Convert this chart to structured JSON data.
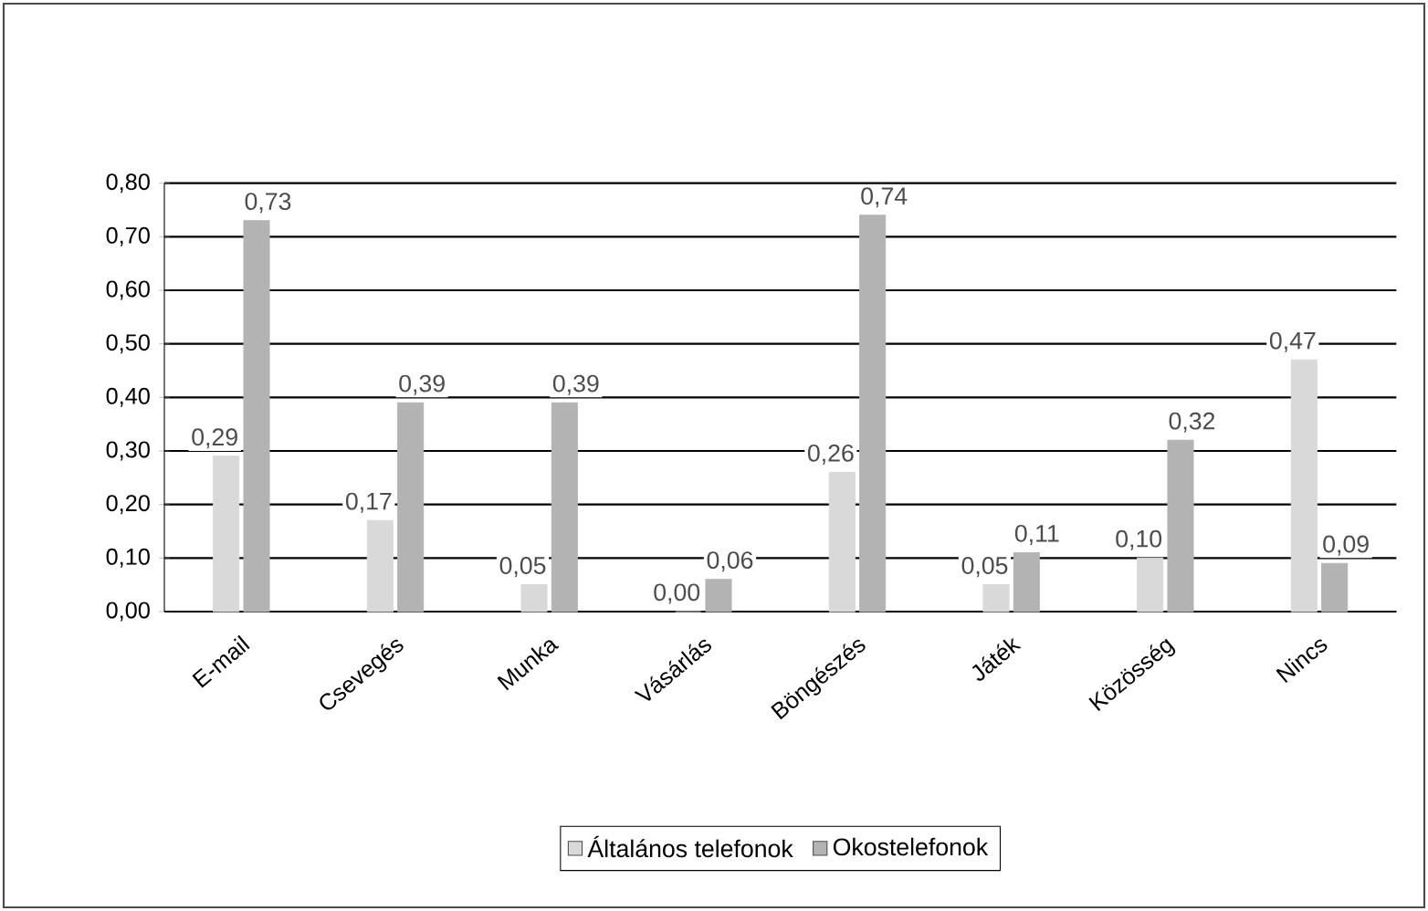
{
  "chart_data": {
    "type": "bar",
    "categories": [
      "E-mail",
      "Csevegés",
      "Munka",
      "Vásárlás",
      "Böngészés",
      "Játék",
      "Közösség",
      "Nincs"
    ],
    "series": [
      {
        "name": "Általános telefonok",
        "color": "#d9d9d9",
        "values": [
          0.29,
          0.17,
          0.05,
          0.0,
          0.26,
          0.05,
          0.1,
          0.47
        ],
        "value_labels": [
          "0,29",
          "0,17",
          "0,05",
          "0,00",
          "0,26",
          "0,05",
          "0,10",
          "0,47"
        ]
      },
      {
        "name": "Okostelefonok",
        "color": "#b3b3b3",
        "values": [
          0.73,
          0.39,
          0.39,
          0.06,
          0.74,
          0.11,
          0.32,
          0.09
        ],
        "value_labels": [
          "0,73",
          "0,39",
          "0,39",
          "0,06",
          "0,74",
          "0,11",
          "0,32",
          "0,09"
        ]
      }
    ],
    "ylim": [
      0,
      0.8
    ],
    "yticks": [
      {
        "value": 0,
        "label": "0,00"
      },
      {
        "value": 0.1,
        "label": "0,10"
      },
      {
        "value": 0.2,
        "label": "0,20"
      },
      {
        "value": 0.3,
        "label": "0,30"
      },
      {
        "value": 0.4,
        "label": "0,40"
      },
      {
        "value": 0.5,
        "label": "0,50"
      },
      {
        "value": 0.6,
        "label": "0,60"
      },
      {
        "value": 0.7,
        "label": "0,70"
      },
      {
        "value": 0.8,
        "label": "0,80"
      }
    ],
    "grid": "y",
    "legend": "bottom"
  }
}
